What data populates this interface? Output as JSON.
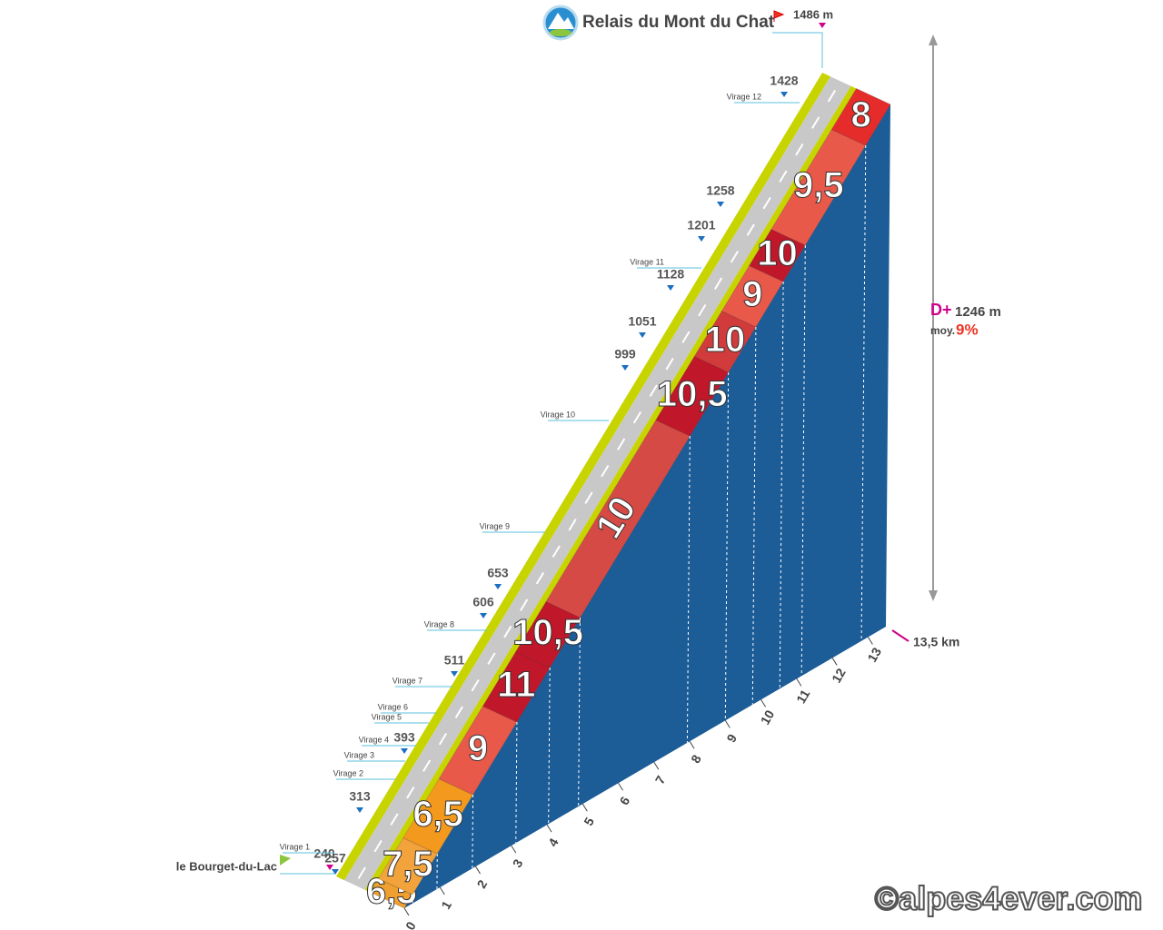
{
  "summit": {
    "name": "Relais du Mont du Chat",
    "altitude": "1486 m"
  },
  "start": {
    "name": "le Bourget-du-Lac",
    "altitude": "240"
  },
  "altitudes": [
    "257",
    "313",
    "393",
    "511",
    "606",
    "653",
    "999",
    "1051",
    "1128",
    "1201",
    "1258",
    "1428"
  ],
  "virages": [
    "Virage 1",
    "Virage 2",
    "Virage 3",
    "Virage 4",
    "Virage 5",
    "Virage 6",
    "Virage 7",
    "Virage 8",
    "Virage 9",
    "Virage 10",
    "Virage 11",
    "Virage 12"
  ],
  "gradients": [
    "6,5",
    "7,5",
    "6,5",
    "9",
    "11",
    "10,5",
    "10",
    "10,5",
    "10",
    "9",
    "10",
    "9,5",
    "8"
  ],
  "km_ticks": [
    "0",
    "1",
    "2",
    "3",
    "4",
    "5",
    "6",
    "7",
    "8",
    "9",
    "10",
    "11",
    "12",
    "13"
  ],
  "distance": "13,5 km",
  "elevation_gain": {
    "label": "D+",
    "value": "1246 m"
  },
  "average": {
    "label": "moy.",
    "value": "9%"
  },
  "credit": "©alpes4ever.com"
}
